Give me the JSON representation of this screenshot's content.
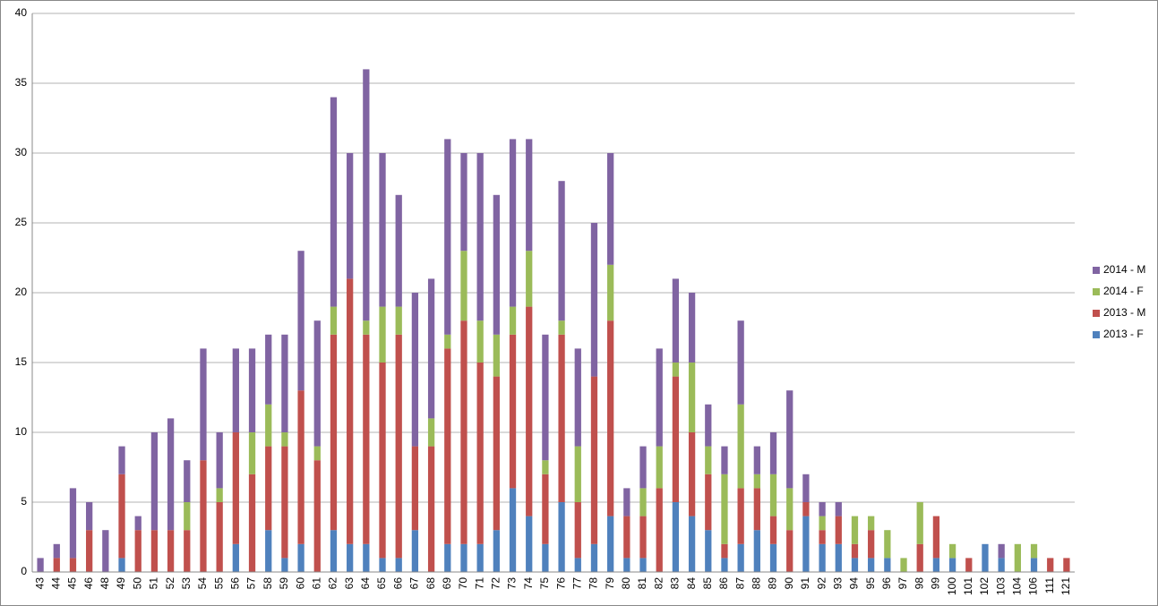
{
  "chart_data": {
    "type": "stacked_bar",
    "categories": [
      "43",
      "44",
      "45",
      "46",
      "48",
      "49",
      "50",
      "51",
      "52",
      "53",
      "54",
      "55",
      "56",
      "57",
      "58",
      "59",
      "60",
      "61",
      "62",
      "63",
      "64",
      "65",
      "66",
      "67",
      "68",
      "69",
      "70",
      "71",
      "72",
      "73",
      "74",
      "75",
      "76",
      "77",
      "78",
      "79",
      "80",
      "81",
      "82",
      "83",
      "84",
      "85",
      "86",
      "87",
      "88",
      "89",
      "90",
      "91",
      "92",
      "93",
      "94",
      "95",
      "96",
      "97",
      "98",
      "99",
      "100",
      "101",
      "102",
      "103",
      "104",
      "106",
      "111",
      "121"
    ],
    "series": [
      {
        "name": "2013 - F",
        "color": "#4f81bd",
        "values": [
          0,
          0,
          0,
          0,
          0,
          1,
          0,
          0,
          0,
          0,
          0,
          0,
          2,
          0,
          3,
          1,
          2,
          0,
          3,
          2,
          2,
          1,
          1,
          3,
          0,
          2,
          2,
          2,
          3,
          6,
          4,
          2,
          5,
          1,
          2,
          4,
          1,
          1,
          0,
          5,
          4,
          3,
          1,
          2,
          3,
          2,
          0,
          4,
          2,
          2,
          1,
          1,
          1,
          0,
          0,
          1,
          1,
          0,
          2,
          1,
          0,
          1,
          0,
          0
        ]
      },
      {
        "name": "2013 - M",
        "color": "#c0504d",
        "values": [
          0,
          1,
          1,
          3,
          0,
          6,
          3,
          3,
          3,
          3,
          8,
          5,
          8,
          7,
          6,
          8,
          11,
          8,
          14,
          19,
          15,
          14,
          16,
          6,
          9,
          14,
          16,
          13,
          11,
          11,
          15,
          5,
          12,
          4,
          12,
          14,
          3,
          3,
          6,
          9,
          6,
          4,
          1,
          4,
          3,
          2,
          3,
          1,
          1,
          2,
          1,
          2,
          0,
          0,
          2,
          3,
          0,
          1,
          0,
          0,
          0,
          0,
          1,
          1
        ]
      },
      {
        "name": "2014 - F",
        "color": "#9bbb59",
        "values": [
          0,
          0,
          0,
          0,
          0,
          0,
          0,
          0,
          0,
          2,
          0,
          1,
          0,
          3,
          3,
          1,
          0,
          1,
          2,
          0,
          1,
          4,
          2,
          0,
          2,
          1,
          5,
          3,
          3,
          2,
          4,
          1,
          1,
          4,
          0,
          4,
          0,
          2,
          3,
          1,
          5,
          2,
          5,
          6,
          1,
          3,
          3,
          0,
          1,
          0,
          2,
          1,
          2,
          1,
          3,
          0,
          1,
          0,
          0,
          0,
          2,
          1,
          0,
          0
        ]
      },
      {
        "name": "2014 - M",
        "color": "#8064a2",
        "values": [
          1,
          1,
          5,
          2,
          3,
          2,
          1,
          7,
          8,
          3,
          8,
          4,
          6,
          6,
          5,
          7,
          10,
          9,
          15,
          9,
          18,
          11,
          8,
          11,
          10,
          14,
          7,
          12,
          10,
          12,
          8,
          9,
          10,
          7,
          11,
          8,
          2,
          3,
          7,
          6,
          5,
          3,
          2,
          6,
          2,
          3,
          7,
          2,
          1,
          1,
          0,
          0,
          0,
          0,
          0,
          0,
          0,
          0,
          0,
          1,
          0,
          0,
          0,
          0
        ]
      }
    ],
    "ylim": [
      0,
      40
    ],
    "yticks": [
      0,
      5,
      10,
      15,
      20,
      25,
      30,
      35,
      40
    ],
    "grid": true,
    "legend": "right"
  }
}
